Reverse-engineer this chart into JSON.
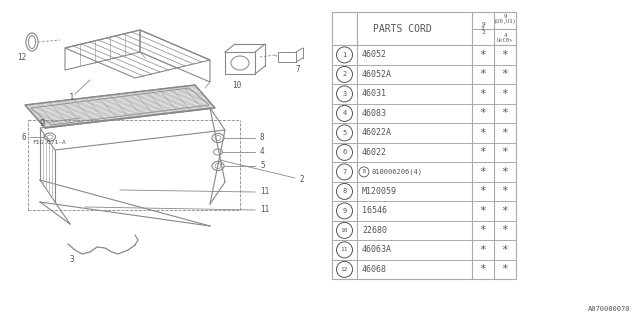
{
  "bg_color": "#ffffff",
  "parts_cord_header": "PARTS CORD",
  "header_col3": "9\n3\n2",
  "header_col4_top": "9\n(U0,U1)",
  "header_col4_bot": "4\nU<C0>",
  "rows": [
    [
      "1",
      "46052",
      "*",
      "*"
    ],
    [
      "2",
      "46052A",
      "*",
      "*"
    ],
    [
      "3",
      "46031",
      "*",
      "*"
    ],
    [
      "4",
      "46083",
      "*",
      "*"
    ],
    [
      "5",
      "46022A",
      "*",
      "*"
    ],
    [
      "6",
      "46022",
      "*",
      "*"
    ],
    [
      "7",
      "B|010006206(4)",
      "*",
      "*"
    ],
    [
      "8",
      "M120059",
      "*",
      "*"
    ],
    [
      "9",
      "16546",
      "*",
      "*"
    ],
    [
      "10",
      "22680",
      "*",
      "*"
    ],
    [
      "11",
      "46063A",
      "*",
      "*"
    ],
    [
      "12",
      "46068",
      "*",
      "*"
    ]
  ],
  "footer_text": "A070000070",
  "line_color": "#aaaaaa",
  "text_color": "#555555",
  "draw_color": "#888888",
  "font_size": 6.5
}
